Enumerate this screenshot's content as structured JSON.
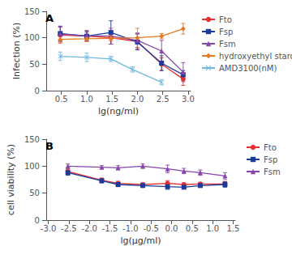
{
  "chart_data": [
    {
      "type": "line",
      "xlabel": "lg(ng/ml)",
      "ylabel": "Infection (%)",
      "annotation": "A",
      "xlim": [
        0.2,
        3.05
      ],
      "xticks": [
        0.5,
        {
          "value": 1.0,
          "label": "1.0"
        },
        1.5,
        {
          "value": 2.0,
          "label": "2.0"
        },
        2.5,
        {
          "value": 3.0,
          "label": "3.0"
        }
      ],
      "ylim": [
        0,
        150
      ],
      "yticks": [
        0,
        50,
        100,
        150
      ],
      "grid": false,
      "legend": "right",
      "series": [
        {
          "name": "Fto",
          "color": "#e63030",
          "marker": "circle",
          "x": [
            0.477,
            1.0,
            1.477,
            2.0,
            2.477,
            2.903
          ],
          "values": [
            105,
            103,
            100,
            93,
            50,
            22
          ],
          "yerr": [
            15,
            10,
            12,
            15,
            12,
            12
          ]
        },
        {
          "name": "Fsp",
          "color": "#1a3a9c",
          "marker": "square",
          "x": [
            0.477,
            1.0,
            1.477,
            2.0,
            2.477,
            2.903
          ],
          "values": [
            108,
            103,
            110,
            92,
            52,
            30
          ],
          "yerr": [
            14,
            8,
            22,
            15,
            14,
            8
          ]
        },
        {
          "name": "Fsm",
          "color": "#8844aa",
          "marker": "triangle",
          "x": [
            0.477,
            1.0,
            1.477,
            2.0,
            2.477,
            2.903
          ],
          "values": [
            107,
            104,
            103,
            95,
            75,
            35
          ],
          "yerr": [
            14,
            10,
            15,
            14,
            20,
            18
          ]
        },
        {
          "name": "hydroxyethyl starch",
          "color": "#e87820",
          "marker": "diamond",
          "x": [
            0.477,
            1.0,
            1.477,
            2.0,
            2.477,
            2.903
          ],
          "values": [
            97,
            98,
            99,
            100,
            103,
            117
          ],
          "yerr": [
            5,
            5,
            5,
            18,
            5,
            10
          ]
        },
        {
          "name": "AMD3100(nM)",
          "color": "#70b8e0",
          "marker": "x",
          "x": [
            0.477,
            1.0,
            1.477,
            1.903,
            2.477
          ],
          "values": [
            65,
            63,
            60,
            40,
            16
          ],
          "yerr": [
            8,
            8,
            5,
            5,
            5
          ]
        }
      ]
    },
    {
      "type": "line",
      "xlabel": "lg(μg/ml)",
      "ylabel": "cell viability (%)",
      "annotation": "B",
      "xlim": [
        -3.05,
        1.55
      ],
      "xticks": [
        {
          "value": -3.0,
          "label": "-3.0"
        },
        -2.5,
        {
          "value": -2.0,
          "label": "-2.0"
        },
        -1.5,
        {
          "value": -1.0,
          "label": "-1.0"
        },
        -0.5,
        {
          "value": 0.0,
          "label": "0.0"
        },
        0.5,
        {
          "value": 1.0,
          "label": "1.0"
        },
        1.5
      ],
      "ylim": [
        0,
        150
      ],
      "yticks": [
        0,
        50,
        100,
        150
      ],
      "grid": false,
      "legend": "right",
      "series": [
        {
          "name": "Fto",
          "color": "#e63030",
          "marker": "circle",
          "x": [
            -2.523,
            -1.699,
            -1.301,
            -0.699,
            -0.097,
            0.301,
            0.699,
            1.301
          ],
          "values": [
            90,
            74,
            68,
            66,
            68,
            66,
            67,
            67
          ],
          "yerr": [
            5,
            4,
            4,
            3,
            5,
            3,
            3,
            5
          ]
        },
        {
          "name": "Fsp",
          "color": "#1a3a9c",
          "marker": "square",
          "x": [
            -2.523,
            -1.699,
            -1.301,
            -0.699,
            -0.097,
            0.301,
            0.699,
            1.301
          ],
          "values": [
            88,
            73,
            66,
            64,
            62,
            61,
            64,
            66
          ],
          "yerr": [
            5,
            4,
            4,
            3,
            5,
            3,
            3,
            5
          ]
        },
        {
          "name": "Fsm",
          "color": "#8844aa",
          "marker": "triangle",
          "x": [
            -2.523,
            -1.699,
            -1.301,
            -0.699,
            -0.097,
            0.301,
            0.699,
            1.301
          ],
          "values": [
            100,
            98,
            97,
            100,
            95,
            91,
            88,
            82
          ],
          "yerr": [
            4,
            3,
            4,
            4,
            7,
            5,
            5,
            6
          ]
        }
      ]
    }
  ]
}
